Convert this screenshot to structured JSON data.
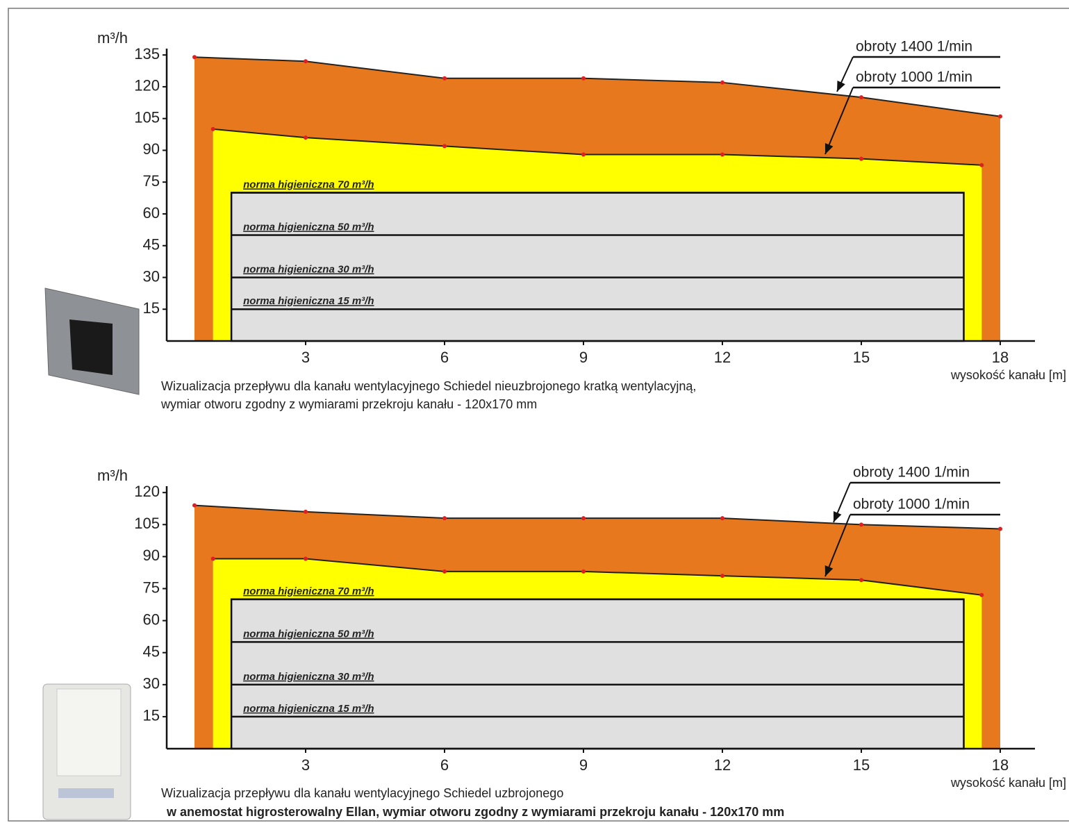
{
  "chart_data": [
    {
      "type": "area",
      "y_label": "m³/h",
      "x_label": "wysokość kanału [m]",
      "caption": [
        "Wizualizacja przepływu dla kanału wentylacyjnego Schiedel nieuzbrojonego kratką wentylacyjną,",
        "wymiar otworu zgodny z wymiarami przekroju kanału - 120x170 mm"
      ],
      "xlim": [
        0,
        18.75
      ],
      "ylim": [
        0,
        138
      ],
      "xticks": [
        3,
        6,
        9,
        12,
        15,
        18
      ],
      "yticks": [
        15,
        30,
        45,
        60,
        75,
        90,
        105,
        120,
        135
      ],
      "series": [
        {
          "name": "obroty 1400 1/min",
          "color": "#e8781e",
          "x": [
            0.6,
            3,
            6,
            9,
            12,
            15,
            18
          ],
          "values": [
            134,
            132,
            124,
            124,
            122,
            115,
            106
          ]
        },
        {
          "name": "obroty 1000 1/min",
          "color": "#ffff00",
          "x": [
            1,
            3,
            6,
            9,
            12,
            15,
            17.6
          ],
          "values": [
            100,
            96,
            92,
            88,
            88,
            86,
            83
          ]
        }
      ],
      "norms": [
        {
          "value": 70,
          "label": "norma higieniczna 70 m³/h"
        },
        {
          "value": 50,
          "label": "norma higieniczna 50 m³/h"
        },
        {
          "value": 30,
          "label": "norma higieniczna 30 m³/h"
        },
        {
          "value": 15,
          "label": "norma higieniczna 15 m³/h"
        }
      ],
      "norm_color": "#e0e0e0"
    },
    {
      "type": "area",
      "y_label": "m³/h",
      "x_label": "wysokość kanału [m]",
      "caption": [
        "Wizualizacja przepływu dla kanału wentylacyjnego Schiedel uzbrojonego",
        "w anemostat higrosterowalny Ellan, wymiar otworu zgodny z wymiarami przekroju kanału - 120x170 mm"
      ],
      "xlim": [
        0,
        18.75
      ],
      "ylim": [
        0,
        123
      ],
      "xticks": [
        3,
        6,
        9,
        12,
        15,
        18
      ],
      "yticks": [
        15,
        30,
        45,
        60,
        75,
        90,
        105,
        120
      ],
      "series": [
        {
          "name": "obroty 1400 1/min",
          "color": "#e8781e",
          "x": [
            0.6,
            3,
            6,
            9,
            12,
            15,
            18
          ],
          "values": [
            114,
            111,
            108,
            108,
            108,
            105,
            103
          ]
        },
        {
          "name": "obroty 1000 1/min",
          "color": "#ffff00",
          "x": [
            1,
            3,
            6,
            9,
            12,
            15,
            17.6
          ],
          "values": [
            89,
            89,
            83,
            83,
            81,
            79,
            72
          ]
        }
      ],
      "norms": [
        {
          "value": 70,
          "label": "norma higieniczna 70 m³/h"
        },
        {
          "value": 50,
          "label": "norma higieniczna 50 m³/h"
        },
        {
          "value": 30,
          "label": "norma higieniczna 30 m³/h"
        },
        {
          "value": 15,
          "label": "norma higieniczna 15 m³/h"
        }
      ],
      "norm_color": "#e0e0e0"
    }
  ]
}
